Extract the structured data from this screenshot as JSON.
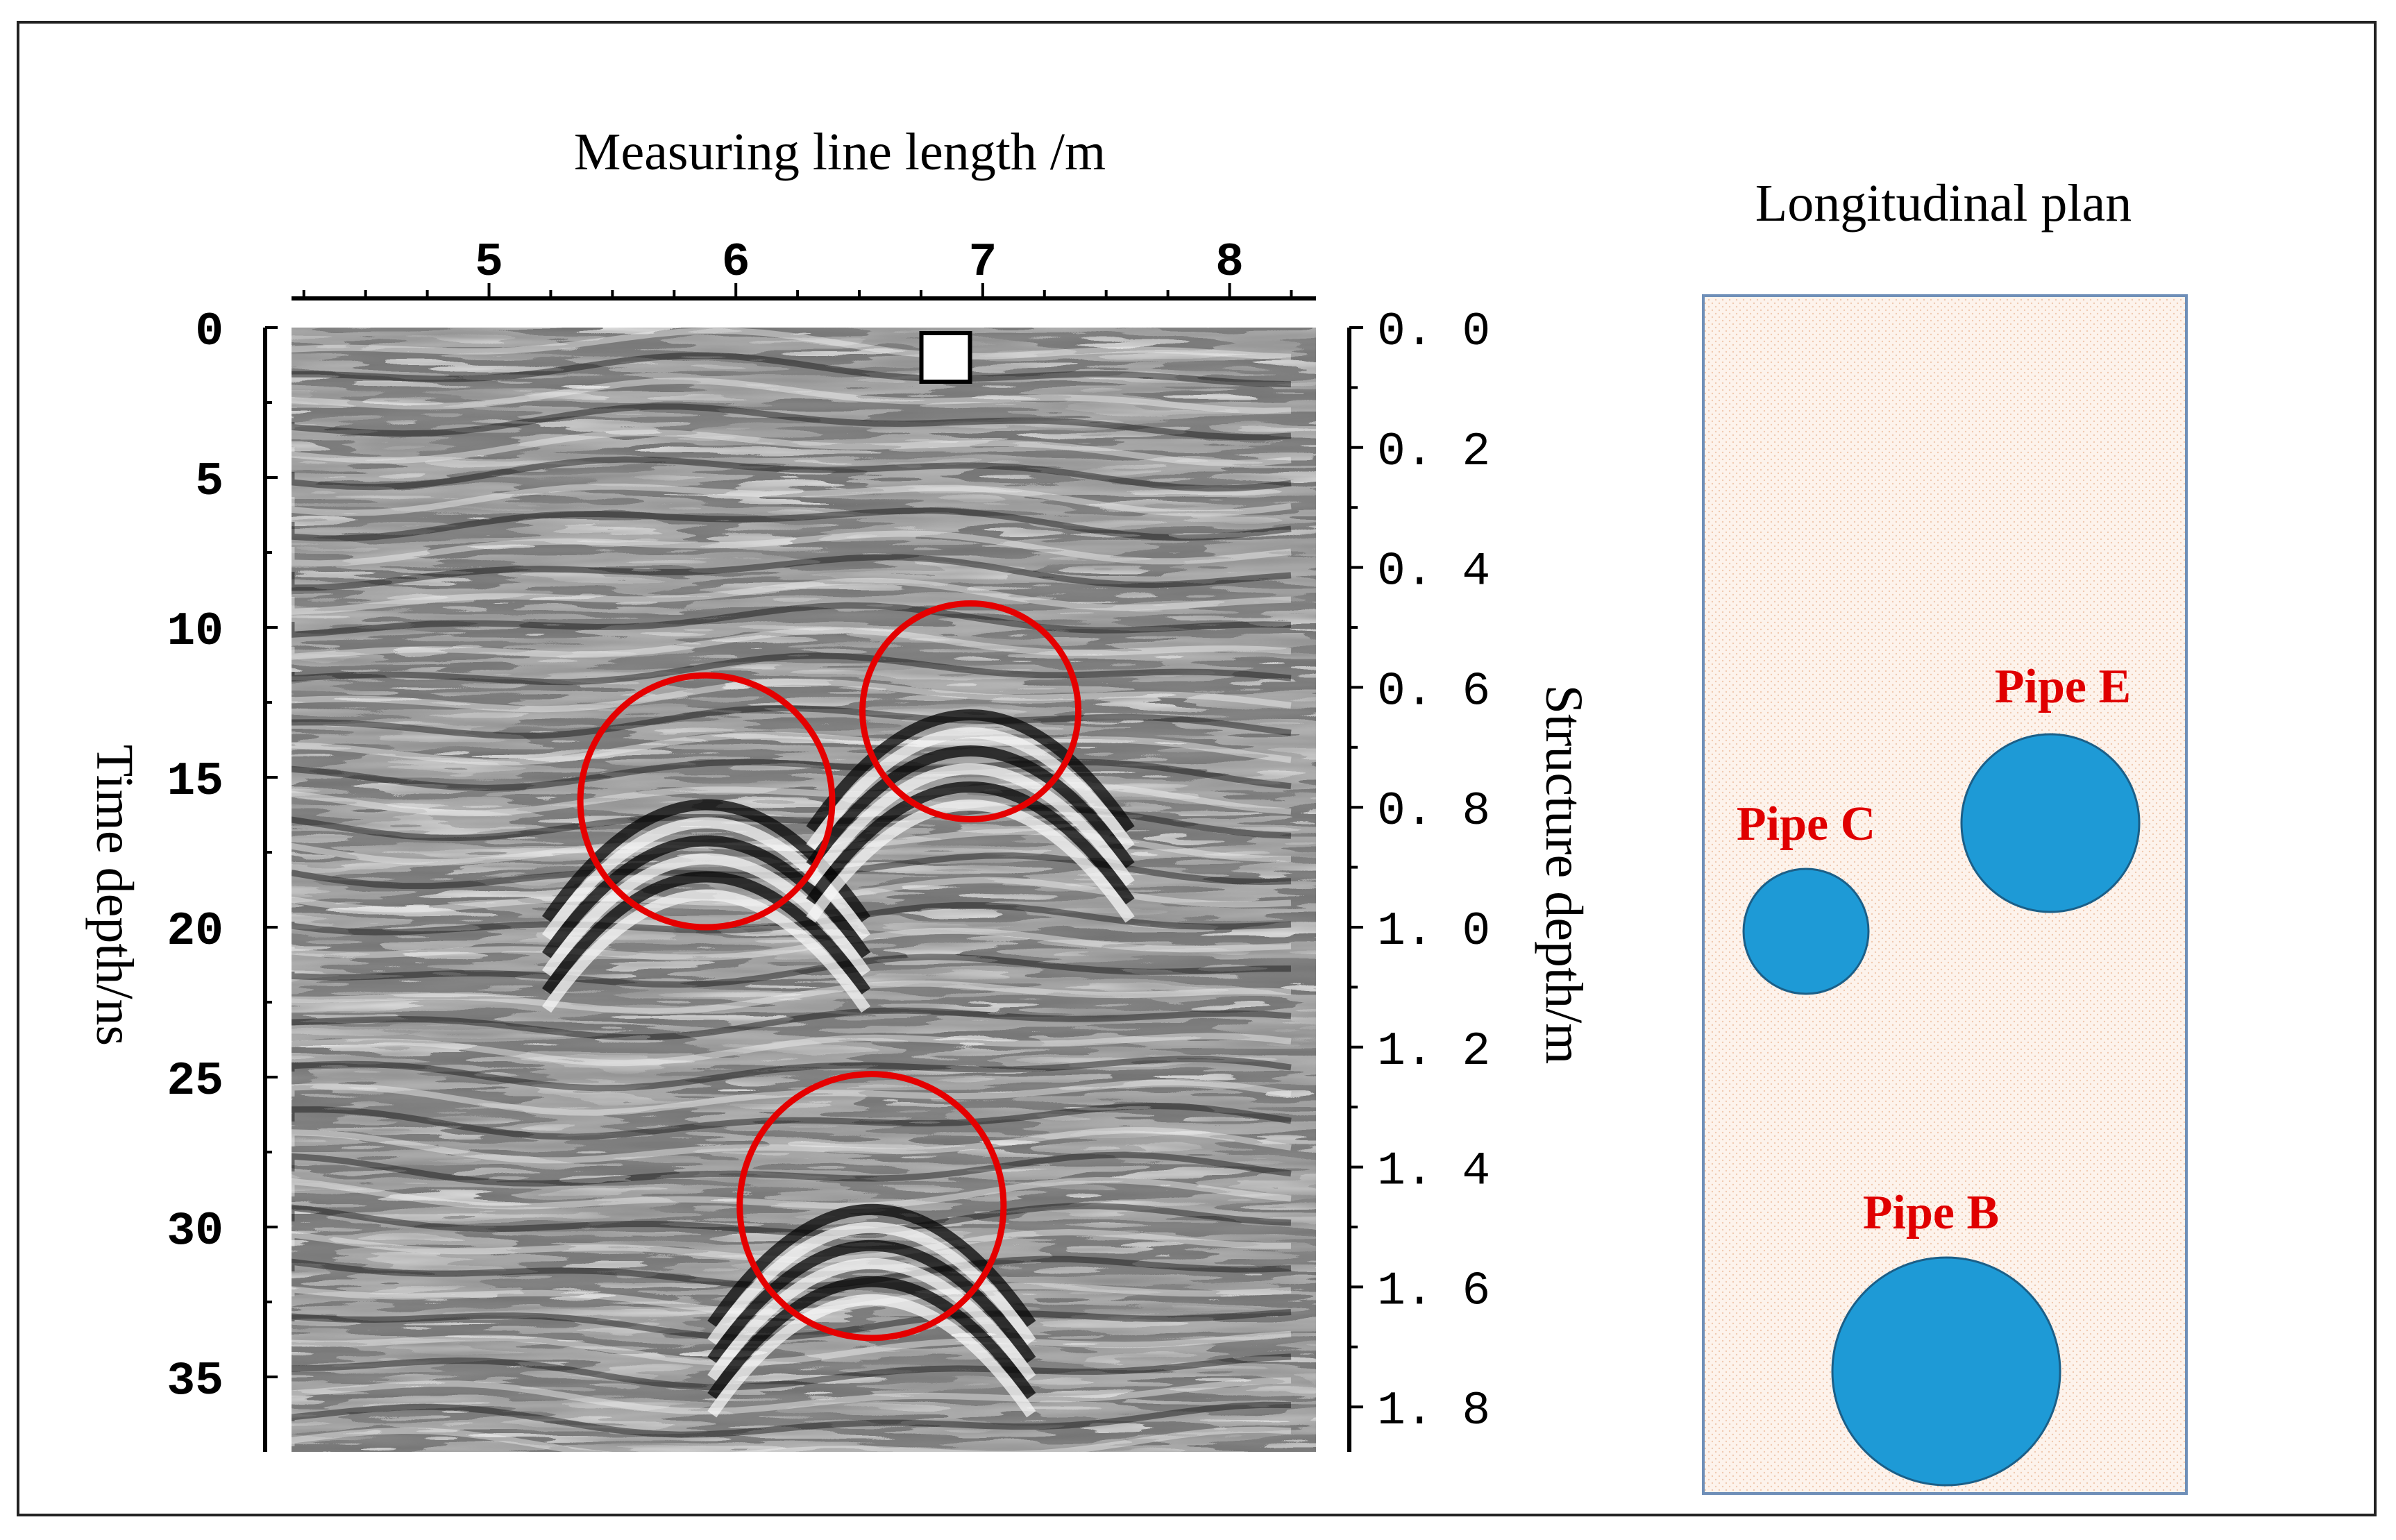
{
  "radargram": {
    "x_axis_title": "Measuring line length /m",
    "x_ticks": [
      {
        "value": 5,
        "label": "5"
      },
      {
        "value": 6,
        "label": "6"
      },
      {
        "value": 7,
        "label": "7"
      },
      {
        "value": 8,
        "label": "8"
      }
    ],
    "x_range": [
      4.2,
      8.35
    ],
    "left_axis_title": "Time depth/ns",
    "left_ticks": [
      {
        "value": 0,
        "label": "0"
      },
      {
        "value": 5,
        "label": "5"
      },
      {
        "value": 10,
        "label": "10"
      },
      {
        "value": 15,
        "label": "15"
      },
      {
        "value": 20,
        "label": "20"
      },
      {
        "value": 25,
        "label": "25"
      },
      {
        "value": 30,
        "label": "30"
      },
      {
        "value": 35,
        "label": "35"
      }
    ],
    "left_range": [
      0,
      37.5
    ],
    "right_axis_title": "Structure depth/m",
    "right_ticks": [
      {
        "value": 0.0,
        "label": "0. 0"
      },
      {
        "value": 0.2,
        "label": "0. 2"
      },
      {
        "value": 0.4,
        "label": "0. 4"
      },
      {
        "value": 0.6,
        "label": "0. 6"
      },
      {
        "value": 0.8,
        "label": "0. 8"
      },
      {
        "value": 1.0,
        "label": "1. 0"
      },
      {
        "value": 1.2,
        "label": "1. 2"
      },
      {
        "value": 1.4,
        "label": "1. 4"
      },
      {
        "value": 1.6,
        "label": "1. 6"
      },
      {
        "value": 1.8,
        "label": "1. 8"
      }
    ],
    "right_range": [
      0,
      1.875
    ],
    "marker_at_m": 6.85,
    "circle_color": "#e50000",
    "anomalies": [
      {
        "x_m": 5.88,
        "t_ns": 15.8,
        "r_ns": 4.2
      },
      {
        "x_m": 6.95,
        "t_ns": 12.8,
        "r_ns": 3.6
      },
      {
        "x_m": 6.55,
        "t_ns": 29.3,
        "r_ns": 4.4
      }
    ]
  },
  "plan": {
    "title": "Longitudinal plan",
    "pipe_color": "#1e9ad6",
    "label_color": "#e00000",
    "background": "#fbefe6",
    "pipes": [
      {
        "label": "Pipe E"
      },
      {
        "label": "Pipe C"
      },
      {
        "label": "Pipe B"
      }
    ]
  }
}
